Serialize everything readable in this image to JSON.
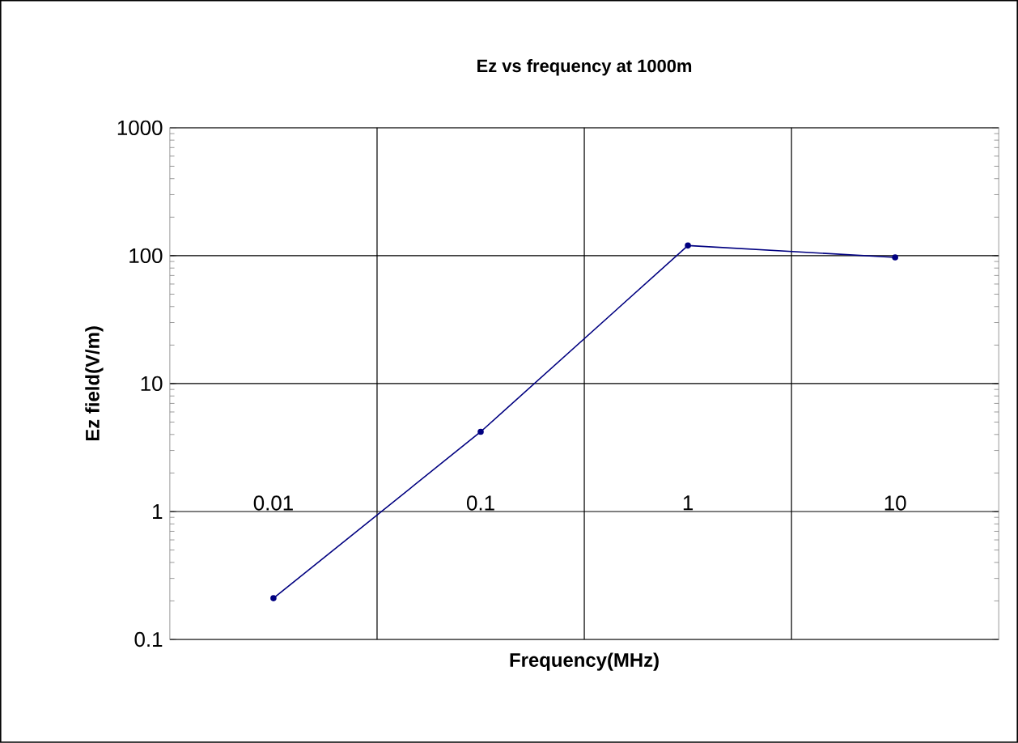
{
  "chart_data": {
    "type": "line",
    "title": "Ez  vs frequency at 1000m",
    "xlabel": "Frequency(MHz)",
    "ylabel": "Ez field(V/m)",
    "categories": [
      "0.01",
      "0.1",
      "1",
      "10"
    ],
    "series": [
      {
        "color": "#000080",
        "values": [
          0.21,
          4.2,
          120,
          97
        ]
      }
    ],
    "log": "y",
    "ylim": [
      0.1,
      1000
    ],
    "yticks": [
      0.1,
      1,
      10,
      100,
      1000
    ],
    "grid": true,
    "marker": "circle",
    "line_style": "solid"
  }
}
